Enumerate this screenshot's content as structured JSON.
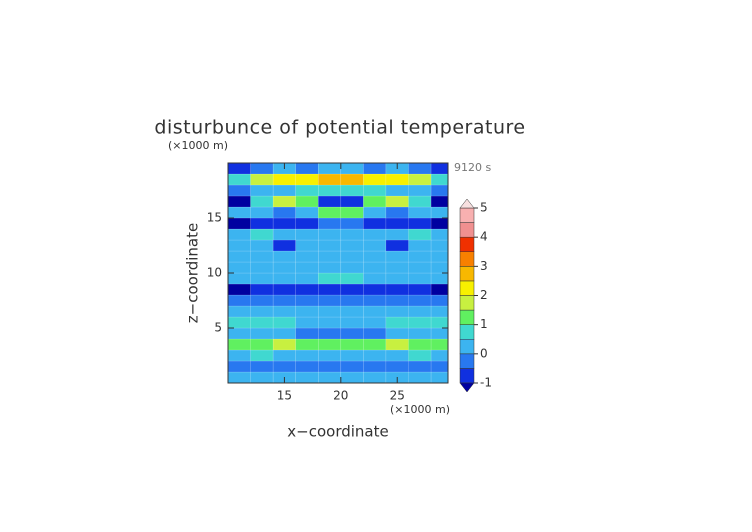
{
  "chart_data": {
    "type": "heatmap",
    "title": "disturbunce of potential temperature",
    "x_label": "x−coordinate",
    "y_label": "z−coordinate",
    "x_unit": "(×1000 m)",
    "y_unit": "(×1000 m)",
    "annotation": "9120 s",
    "x": [
      11,
      13,
      15,
      17,
      19,
      21,
      23,
      25,
      27,
      29
    ],
    "y": [
      0.5,
      1.5,
      2.5,
      3.5,
      4.5,
      5.5,
      6.5,
      7.5,
      8.5,
      9.5,
      10.5,
      11.5,
      12.5,
      13.5,
      14.5,
      15.5,
      16.5,
      17.5,
      18.5,
      19.5
    ],
    "z": [
      [
        0.3,
        0.3,
        0.3,
        0.2,
        0.2,
        0.2,
        0.2,
        0.3,
        0.3,
        0.3
      ],
      [
        -0.2,
        -0.2,
        -0.3,
        -0.3,
        -0.2,
        -0.2,
        -0.3,
        -0.3,
        -0.2,
        -0.2
      ],
      [
        0.4,
        0.5,
        0.4,
        0.3,
        0.3,
        0.3,
        0.3,
        0.4,
        0.5,
        0.4
      ],
      [
        1.2,
        1.4,
        1.6,
        1.3,
        1.1,
        1.1,
        1.3,
        1.6,
        1.4,
        1.2
      ],
      [
        0.4,
        0.3,
        0.2,
        -0.1,
        -0.3,
        -0.3,
        -0.1,
        0.2,
        0.3,
        0.4
      ],
      [
        0.9,
        0.8,
        0.5,
        0.3,
        0.2,
        0.2,
        0.3,
        0.5,
        0.8,
        0.9
      ],
      [
        0.3,
        0.2,
        0.2,
        0.1,
        0.1,
        0.1,
        0.1,
        0.2,
        0.2,
        0.3
      ],
      [
        -0.3,
        -0.3,
        -0.2,
        -0.2,
        -0.1,
        -0.1,
        -0.2,
        -0.2,
        -0.3,
        -0.3
      ],
      [
        -1.1,
        -1.0,
        -0.9,
        -0.8,
        -0.7,
        -0.7,
        -0.8,
        -0.9,
        -1.0,
        -1.1
      ],
      [
        0.2,
        0.2,
        0.1,
        0.3,
        0.6,
        0.6,
        0.3,
        0.1,
        0.2,
        0.2
      ],
      [
        0.2,
        0.3,
        0.2,
        0.2,
        0.3,
        0.3,
        0.2,
        0.2,
        0.3,
        0.2
      ],
      [
        0.1,
        0.2,
        0.3,
        0.2,
        0.1,
        0.1,
        0.2,
        0.3,
        0.2,
        0.1
      ],
      [
        0.2,
        0.1,
        -0.6,
        0.2,
        0.3,
        0.3,
        0.2,
        -0.6,
        0.1,
        0.2
      ],
      [
        0.3,
        0.8,
        0.3,
        0.1,
        0.2,
        0.2,
        0.1,
        0.3,
        0.8,
        0.3
      ],
      [
        -1.1,
        -0.9,
        -0.7,
        -1.0,
        -0.3,
        -0.3,
        -1.0,
        -0.7,
        -0.9,
        -1.1
      ],
      [
        0.2,
        0.3,
        -0.2,
        0.4,
        1.3,
        1.3,
        0.4,
        -0.2,
        0.3,
        0.2
      ],
      [
        -1.2,
        0.5,
        1.8,
        1.0,
        -0.9,
        -0.9,
        1.0,
        1.8,
        0.5,
        -1.2
      ],
      [
        -0.3,
        0.2,
        0.3,
        0.6,
        0.8,
        0.8,
        0.6,
        0.3,
        0.2,
        -0.3
      ],
      [
        0.8,
        1.6,
        2.2,
        2.1,
        2.6,
        2.6,
        2.1,
        2.2,
        1.6,
        0.8
      ],
      [
        -0.6,
        -0.3,
        0.2,
        -0.2,
        0.1,
        0.1,
        -0.2,
        0.2,
        -0.3,
        -0.6
      ]
    ],
    "xlim": [
      10,
      29.5
    ],
    "ylim": [
      0,
      20
    ],
    "xticks": [
      15,
      20,
      25
    ],
    "yticks": [
      5,
      10,
      15
    ],
    "colorbar": {
      "levels": [
        -1,
        -0.5,
        0,
        0.5,
        1,
        1.5,
        2,
        2.5,
        3,
        3.5,
        4,
        4.5,
        5
      ],
      "colors": [
        "#0000a0",
        "#1030e0",
        "#2878f0",
        "#3cb4f0",
        "#40d8d0",
        "#60f060",
        "#c8f040",
        "#f8f000",
        "#f8b800",
        "#f88000",
        "#f03000",
        "#f09090",
        "#f8b0b0",
        "#f8e0e0"
      ],
      "ticks": [
        -1,
        0,
        1,
        2,
        3,
        4,
        5
      ]
    }
  }
}
